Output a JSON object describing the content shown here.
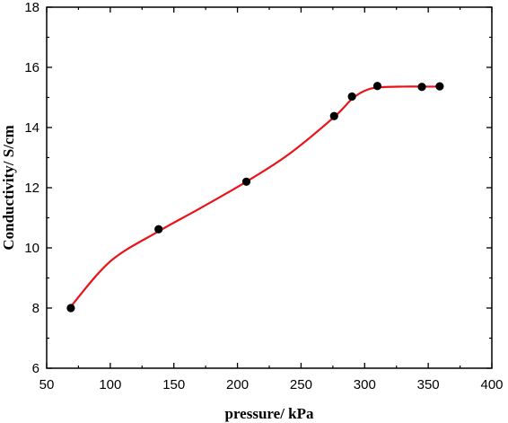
{
  "chart_data": {
    "type": "scatter",
    "title": "",
    "xlabel": "pressure/ kPa",
    "ylabel": "Conductivity/ S/cm",
    "xlim": [
      50,
      400
    ],
    "ylim": [
      6,
      18
    ],
    "x_ticks": [
      50,
      100,
      150,
      200,
      250,
      300,
      350,
      400
    ],
    "y_ticks": [
      6,
      8,
      10,
      12,
      14,
      16,
      18
    ],
    "grid": false,
    "legend": "none",
    "colors": {
      "points": "#000000",
      "fit_line": "#e8141a",
      "axes": "#000000"
    },
    "series": [
      {
        "type": "scatter",
        "x": [
          69,
          138,
          207,
          276,
          290,
          310,
          345,
          359
        ],
        "y": [
          8.0,
          10.62,
          12.2,
          14.38,
          15.03,
          15.38,
          15.35,
          15.37
        ]
      },
      {
        "type": "line",
        "style": "smooth fit",
        "x": [
          69,
          100,
          138,
          170,
          207,
          240,
          276,
          290,
          300,
          310,
          330,
          345,
          359
        ],
        "y": [
          8.05,
          9.55,
          10.55,
          11.3,
          12.2,
          13.1,
          14.35,
          14.95,
          15.22,
          15.33,
          15.36,
          15.36,
          15.36
        ]
      }
    ]
  }
}
